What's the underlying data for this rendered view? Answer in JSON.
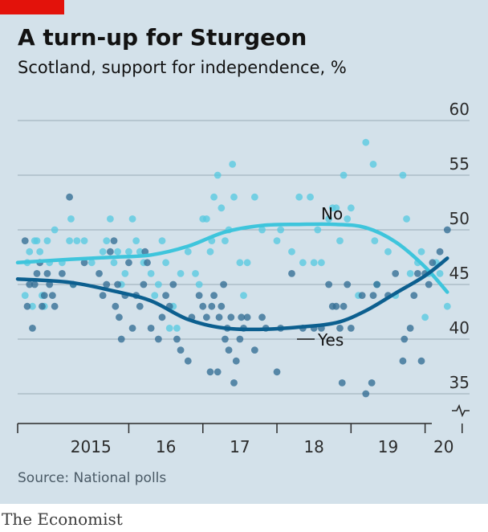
{
  "header": {
    "title": "A turn-up for Sturgeon",
    "subtitle": "Scotland, support for independence, %"
  },
  "footer": {
    "source": "Source: National polls",
    "brand": "The Economist"
  },
  "colors": {
    "accent": "#e3120b",
    "background": "#d3e1ea",
    "yes": "#0c5f8f",
    "no": "#3ec5dc",
    "yes_points": "#336d94",
    "no_points": "#58c9e0"
  },
  "chart_data": {
    "type": "scatter",
    "title": "A turn-up for Sturgeon",
    "subtitle": "Scotland, support for independence, %",
    "ylim": [
      35,
      60
    ],
    "y_ticks": [
      35,
      40,
      45,
      50,
      55,
      60
    ],
    "y_axis_side": "right",
    "y_axis_break": true,
    "grid": true,
    "x_ticks": [
      {
        "label": "2015",
        "year": 2015
      },
      {
        "label": "16",
        "year": 2016
      },
      {
        "label": "17",
        "year": 2017
      },
      {
        "label": "18",
        "year": 2018
      },
      {
        "label": "19",
        "year": 2019
      },
      {
        "label": "20",
        "year": 2020
      }
    ],
    "series": [
      {
        "name": "Yes",
        "trend": [
          [
            2014.5,
            45.5
          ],
          [
            2015.2,
            45.2
          ],
          [
            2015.8,
            44.4
          ],
          [
            2016.3,
            43.5
          ],
          [
            2016.8,
            41.8
          ],
          [
            2017.3,
            41.0
          ],
          [
            2017.8,
            40.9
          ],
          [
            2018.3,
            41.1
          ],
          [
            2018.8,
            41.5
          ],
          [
            2019.2,
            42.6
          ],
          [
            2019.6,
            44.2
          ],
          [
            2020.0,
            45.8
          ],
          [
            2020.3,
            47.4
          ]
        ],
        "points": [
          [
            2014.6,
            49
          ],
          [
            2014.63,
            43
          ],
          [
            2014.66,
            45
          ],
          [
            2014.7,
            41
          ],
          [
            2014.73,
            45
          ],
          [
            2014.76,
            46
          ],
          [
            2014.8,
            47
          ],
          [
            2014.83,
            43
          ],
          [
            2014.86,
            44
          ],
          [
            2014.9,
            46
          ],
          [
            2014.93,
            45
          ],
          [
            2014.97,
            44
          ],
          [
            2015.0,
            43
          ],
          [
            2015.1,
            46
          ],
          [
            2015.2,
            53
          ],
          [
            2015.25,
            45
          ],
          [
            2015.4,
            47
          ],
          [
            2015.6,
            46
          ],
          [
            2015.65,
            44
          ],
          [
            2015.7,
            45
          ],
          [
            2015.75,
            48
          ],
          [
            2015.8,
            49
          ],
          [
            2015.82,
            43
          ],
          [
            2015.85,
            45
          ],
          [
            2015.87,
            42
          ],
          [
            2015.9,
            40
          ],
          [
            2015.95,
            44
          ],
          [
            2016.0,
            47
          ],
          [
            2016.05,
            41
          ],
          [
            2016.1,
            44
          ],
          [
            2016.15,
            43
          ],
          [
            2016.2,
            45
          ],
          [
            2016.22,
            48
          ],
          [
            2016.25,
            47
          ],
          [
            2016.3,
            41
          ],
          [
            2016.4,
            40
          ],
          [
            2016.45,
            42
          ],
          [
            2016.5,
            44
          ],
          [
            2016.55,
            43
          ],
          [
            2016.6,
            45
          ],
          [
            2016.65,
            40
          ],
          [
            2016.7,
            39
          ],
          [
            2016.8,
            38
          ],
          [
            2016.85,
            42
          ],
          [
            2016.95,
            44
          ],
          [
            2017.0,
            43
          ],
          [
            2017.05,
            42
          ],
          [
            2017.1,
            37
          ],
          [
            2017.12,
            43
          ],
          [
            2017.15,
            44
          ],
          [
            2017.2,
            37
          ],
          [
            2017.22,
            42
          ],
          [
            2017.25,
            43
          ],
          [
            2017.28,
            45
          ],
          [
            2017.3,
            40
          ],
          [
            2017.33,
            41
          ],
          [
            2017.35,
            39
          ],
          [
            2017.38,
            42
          ],
          [
            2017.42,
            36
          ],
          [
            2017.45,
            38
          ],
          [
            2017.5,
            40
          ],
          [
            2017.52,
            42
          ],
          [
            2017.55,
            41
          ],
          [
            2017.6,
            42
          ],
          [
            2017.7,
            39
          ],
          [
            2017.8,
            42
          ],
          [
            2017.85,
            41
          ],
          [
            2018.0,
            37
          ],
          [
            2018.05,
            41
          ],
          [
            2018.2,
            46
          ],
          [
            2018.35,
            41
          ],
          [
            2018.5,
            41
          ],
          [
            2018.6,
            41
          ],
          [
            2018.7,
            45
          ],
          [
            2018.75,
            43
          ],
          [
            2018.8,
            43
          ],
          [
            2018.85,
            41
          ],
          [
            2018.88,
            36
          ],
          [
            2018.9,
            43
          ],
          [
            2018.95,
            45
          ],
          [
            2019.0,
            41
          ],
          [
            2019.15,
            44
          ],
          [
            2019.2,
            35
          ],
          [
            2019.28,
            36
          ],
          [
            2019.3,
            44
          ],
          [
            2019.35,
            45
          ],
          [
            2019.5,
            44
          ],
          [
            2019.6,
            46
          ],
          [
            2019.7,
            38
          ],
          [
            2019.72,
            40
          ],
          [
            2019.8,
            41
          ],
          [
            2019.85,
            44
          ],
          [
            2019.9,
            46
          ],
          [
            2019.95,
            38
          ],
          [
            2020.0,
            46
          ],
          [
            2020.05,
            45
          ],
          [
            2020.1,
            47
          ],
          [
            2020.2,
            48
          ],
          [
            2020.3,
            50
          ]
        ]
      },
      {
        "name": "No",
        "trend": [
          [
            2014.5,
            47.0
          ],
          [
            2015.2,
            47.3
          ],
          [
            2015.8,
            47.5
          ],
          [
            2016.3,
            47.7
          ],
          [
            2016.8,
            48.5
          ],
          [
            2017.3,
            49.8
          ],
          [
            2017.8,
            50.4
          ],
          [
            2018.3,
            50.5
          ],
          [
            2018.8,
            50.5
          ],
          [
            2019.2,
            50.2
          ],
          [
            2019.6,
            48.9
          ],
          [
            2020.0,
            46.6
          ],
          [
            2020.3,
            44.3
          ]
        ],
        "points": [
          [
            2014.6,
            44
          ],
          [
            2014.63,
            47
          ],
          [
            2014.66,
            48
          ],
          [
            2014.7,
            43
          ],
          [
            2014.73,
            49
          ],
          [
            2014.76,
            49
          ],
          [
            2014.8,
            48
          ],
          [
            2014.83,
            44
          ],
          [
            2014.86,
            43
          ],
          [
            2014.9,
            49
          ],
          [
            2014.93,
            47
          ],
          [
            2015.0,
            50
          ],
          [
            2015.1,
            47
          ],
          [
            2015.2,
            49
          ],
          [
            2015.22,
            51
          ],
          [
            2015.25,
            45
          ],
          [
            2015.3,
            49
          ],
          [
            2015.4,
            49
          ],
          [
            2015.5,
            47
          ],
          [
            2015.65,
            48
          ],
          [
            2015.7,
            49
          ],
          [
            2015.75,
            51
          ],
          [
            2015.8,
            47
          ],
          [
            2015.85,
            48
          ],
          [
            2015.9,
            45
          ],
          [
            2015.95,
            46
          ],
          [
            2016.0,
            48
          ],
          [
            2016.05,
            51
          ],
          [
            2016.1,
            49
          ],
          [
            2016.15,
            48
          ],
          [
            2016.2,
            47
          ],
          [
            2016.3,
            46
          ],
          [
            2016.35,
            44
          ],
          [
            2016.4,
            45
          ],
          [
            2016.45,
            49
          ],
          [
            2016.5,
            47
          ],
          [
            2016.55,
            41
          ],
          [
            2016.6,
            43
          ],
          [
            2016.65,
            41
          ],
          [
            2016.7,
            46
          ],
          [
            2016.8,
            48
          ],
          [
            2016.9,
            46
          ],
          [
            2016.95,
            45
          ],
          [
            2017.0,
            51
          ],
          [
            2017.05,
            51
          ],
          [
            2017.1,
            48
          ],
          [
            2017.12,
            49
          ],
          [
            2017.15,
            53
          ],
          [
            2017.2,
            55
          ],
          [
            2017.25,
            52
          ],
          [
            2017.3,
            49
          ],
          [
            2017.35,
            50
          ],
          [
            2017.4,
            56
          ],
          [
            2017.42,
            53
          ],
          [
            2017.5,
            47
          ],
          [
            2017.55,
            44
          ],
          [
            2017.6,
            47
          ],
          [
            2017.7,
            53
          ],
          [
            2017.8,
            50
          ],
          [
            2018.0,
            49
          ],
          [
            2018.05,
            50
          ],
          [
            2018.2,
            48
          ],
          [
            2018.3,
            53
          ],
          [
            2018.35,
            47
          ],
          [
            2018.45,
            53
          ],
          [
            2018.5,
            47
          ],
          [
            2018.55,
            50
          ],
          [
            2018.6,
            47
          ],
          [
            2018.7,
            51
          ],
          [
            2018.75,
            52
          ],
          [
            2018.8,
            52
          ],
          [
            2018.85,
            49
          ],
          [
            2018.9,
            55
          ],
          [
            2018.95,
            51
          ],
          [
            2019.0,
            52
          ],
          [
            2019.1,
            44
          ],
          [
            2019.2,
            58
          ],
          [
            2019.3,
            56
          ],
          [
            2019.32,
            49
          ],
          [
            2019.35,
            45
          ],
          [
            2019.5,
            48
          ],
          [
            2019.6,
            44
          ],
          [
            2019.7,
            55
          ],
          [
            2019.75,
            51
          ],
          [
            2019.8,
            46
          ],
          [
            2019.9,
            47
          ],
          [
            2019.95,
            48
          ],
          [
            2020.0,
            42
          ],
          [
            2020.05,
            46
          ],
          [
            2020.15,
            47
          ],
          [
            2020.2,
            46
          ],
          [
            2020.3,
            43
          ]
        ]
      }
    ]
  }
}
